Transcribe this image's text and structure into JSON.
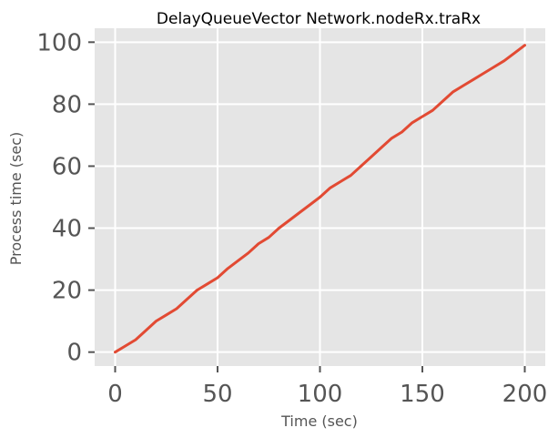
{
  "chart_data": {
    "type": "line",
    "title": "DelayQueueVector Network.nodeRx.traRx",
    "xlabel": "Time (sec)",
    "ylabel": "Process time (sec)",
    "xlim": [
      -10,
      210
    ],
    "ylim": [
      -4.5,
      104.5
    ],
    "xticks": [
      0,
      50,
      100,
      150,
      200
    ],
    "yticks": [
      0,
      20,
      40,
      60,
      80,
      100
    ],
    "xtick_labels": [
      "0",
      "50",
      "100",
      "150",
      "200"
    ],
    "ytick_labels": [
      "0",
      "20",
      "40",
      "60",
      "80",
      "100"
    ],
    "grid": true,
    "background": "#e5e5e5",
    "line_color": "#e24a33",
    "series": [
      {
        "x": [
          0,
          5,
          10,
          15,
          20,
          25,
          30,
          35,
          40,
          45,
          50,
          55,
          60,
          65,
          70,
          75,
          80,
          85,
          90,
          95,
          100,
          105,
          110,
          115,
          120,
          125,
          130,
          135,
          140,
          145,
          150,
          155,
          160,
          165,
          170,
          175,
          180,
          185,
          190,
          195,
          200
        ],
        "values": [
          0,
          2,
          4,
          7,
          10,
          12,
          14,
          17,
          20,
          22,
          24,
          27,
          29.5,
          32,
          35,
          37,
          40,
          42.5,
          45,
          47.5,
          50,
          53,
          55,
          57,
          60,
          63,
          66,
          69,
          71,
          74,
          76,
          78,
          81,
          84,
          86,
          88,
          90,
          92,
          94,
          96.5,
          99
        ]
      }
    ]
  }
}
